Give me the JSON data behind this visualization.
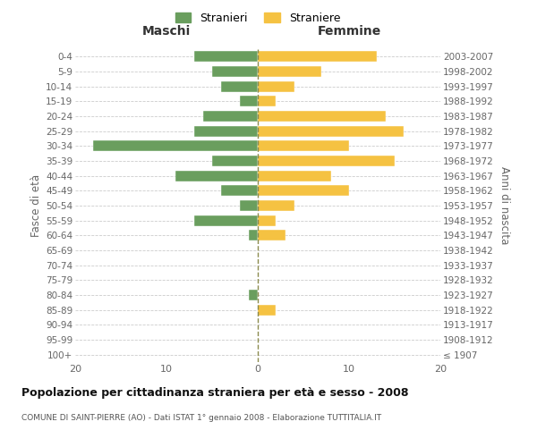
{
  "age_groups": [
    "100+",
    "95-99",
    "90-94",
    "85-89",
    "80-84",
    "75-79",
    "70-74",
    "65-69",
    "60-64",
    "55-59",
    "50-54",
    "45-49",
    "40-44",
    "35-39",
    "30-34",
    "25-29",
    "20-24",
    "15-19",
    "10-14",
    "5-9",
    "0-4"
  ],
  "birth_years": [
    "≤ 1907",
    "1908-1912",
    "1913-1917",
    "1918-1922",
    "1923-1927",
    "1928-1932",
    "1933-1937",
    "1938-1942",
    "1943-1947",
    "1948-1952",
    "1953-1957",
    "1958-1962",
    "1963-1967",
    "1968-1972",
    "1973-1977",
    "1978-1982",
    "1983-1987",
    "1988-1992",
    "1993-1997",
    "1998-2002",
    "2003-2007"
  ],
  "maschi": [
    0,
    0,
    0,
    0,
    1,
    0,
    0,
    0,
    1,
    7,
    2,
    4,
    9,
    5,
    18,
    7,
    6,
    2,
    4,
    5,
    7
  ],
  "femmine": [
    0,
    0,
    0,
    2,
    0,
    0,
    0,
    0,
    3,
    2,
    4,
    10,
    8,
    15,
    10,
    16,
    14,
    2,
    4,
    7,
    13
  ],
  "maschi_color": "#6a9e5e",
  "femmine_color": "#f5c242",
  "background_color": "#ffffff",
  "grid_color": "#cccccc",
  "title": "Popolazione per cittadinanza straniera per età e sesso - 2008",
  "subtitle": "COMUNE DI SAINT-PIERRE (AO) - Dati ISTAT 1° gennaio 2008 - Elaborazione TUTTITALIA.IT",
  "xlabel_left": "Maschi",
  "xlabel_right": "Femmine",
  "ylabel_left": "Fasce di età",
  "ylabel_right": "Anni di nascita",
  "legend_maschi": "Stranieri",
  "legend_femmine": "Straniere",
  "xlim": 20,
  "dashed_line_color": "#8b8b4e"
}
